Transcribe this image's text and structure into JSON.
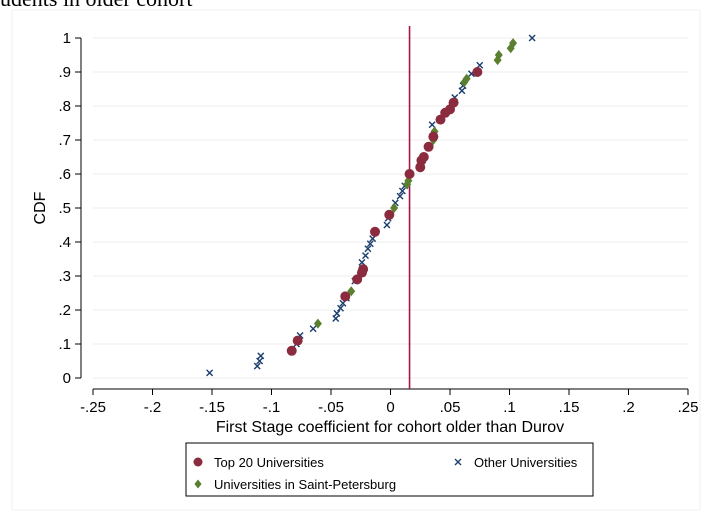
{
  "page_title_fragment": "udents in older cohort",
  "chart_data": {
    "type": "scatter",
    "title": "",
    "xlabel": "First Stage coefficient for cohort older than Durov",
    "ylabel": "CDF",
    "xlim": [
      -0.25,
      0.25
    ],
    "ylim": [
      0,
      1
    ],
    "x_ticks": [
      -0.25,
      -0.2,
      -0.15,
      -0.1,
      -0.05,
      0,
      0.05,
      0.1,
      0.15,
      0.2,
      0.25
    ],
    "x_tick_labels": [
      "-.25",
      "-.2",
      "-.15",
      "-.1",
      "-.05",
      "0",
      ".05",
      ".1",
      ".15",
      ".2",
      ".25"
    ],
    "y_ticks": [
      0,
      0.1,
      0.2,
      0.3,
      0.4,
      0.5,
      0.6,
      0.7,
      0.8,
      0.9,
      1
    ],
    "y_tick_labels": [
      "0",
      ".1",
      ".2",
      ".3",
      ".4",
      ".5",
      ".6",
      ".7",
      ".8",
      ".9",
      "1"
    ],
    "grid": "horizontal",
    "reference_line": {
      "x": 0.016,
      "color": "#a3174a"
    },
    "legend_position": "bottom",
    "series": [
      {
        "name": "Top 20 Universities",
        "marker": "circle",
        "color": "#8b2c3e",
        "points": [
          [
            -0.083,
            0.08
          ],
          [
            -0.078,
            0.11
          ],
          [
            -0.038,
            0.24
          ],
          [
            -0.028,
            0.29
          ],
          [
            -0.024,
            0.31
          ],
          [
            -0.023,
            0.32
          ],
          [
            -0.013,
            0.43
          ],
          [
            -0.001,
            0.48
          ],
          [
            0.016,
            0.6
          ],
          [
            0.025,
            0.62
          ],
          [
            0.026,
            0.64
          ],
          [
            0.028,
            0.65
          ],
          [
            0.032,
            0.68
          ],
          [
            0.036,
            0.71
          ],
          [
            0.042,
            0.76
          ],
          [
            0.046,
            0.78
          ],
          [
            0.05,
            0.79
          ],
          [
            0.053,
            0.81
          ],
          [
            0.073,
            0.9
          ]
        ]
      },
      {
        "name": "Other Universities",
        "marker": "x",
        "color": "#1a3d6e",
        "points": [
          [
            -0.152,
            0.015
          ],
          [
            -0.112,
            0.035
          ],
          [
            -0.11,
            0.05
          ],
          [
            -0.109,
            0.065
          ],
          [
            -0.079,
            0.1
          ],
          [
            -0.076,
            0.125
          ],
          [
            -0.065,
            0.145
          ],
          [
            -0.046,
            0.175
          ],
          [
            -0.045,
            0.19
          ],
          [
            -0.042,
            0.205
          ],
          [
            -0.04,
            0.22
          ],
          [
            -0.037,
            0.235
          ],
          [
            -0.03,
            0.285
          ],
          [
            -0.024,
            0.34
          ],
          [
            -0.021,
            0.36
          ],
          [
            -0.019,
            0.38
          ],
          [
            -0.017,
            0.395
          ],
          [
            -0.015,
            0.41
          ],
          [
            -0.003,
            0.45
          ],
          [
            -0.002,
            0.47
          ],
          [
            0.004,
            0.515
          ],
          [
            0.008,
            0.535
          ],
          [
            0.01,
            0.55
          ],
          [
            0.012,
            0.565
          ],
          [
            0.035,
            0.745
          ],
          [
            0.054,
            0.825
          ],
          [
            0.06,
            0.845
          ],
          [
            0.061,
            0.86
          ],
          [
            0.068,
            0.895
          ],
          [
            0.075,
            0.92
          ],
          [
            0.119,
            1.0
          ]
        ]
      },
      {
        "name": "Universities in Saint-Petersburg",
        "marker": "diamond",
        "color": "#5a7f2f",
        "points": [
          [
            -0.061,
            0.16
          ],
          [
            -0.033,
            0.255
          ],
          [
            0.003,
            0.5
          ],
          [
            0.014,
            0.57
          ],
          [
            0.015,
            0.58
          ],
          [
            0.036,
            0.7
          ],
          [
            0.037,
            0.725
          ],
          [
            0.054,
            0.81
          ],
          [
            0.062,
            0.87
          ],
          [
            0.064,
            0.88
          ],
          [
            0.09,
            0.935
          ],
          [
            0.091,
            0.95
          ],
          [
            0.101,
            0.97
          ],
          [
            0.103,
            0.985
          ]
        ]
      }
    ]
  }
}
